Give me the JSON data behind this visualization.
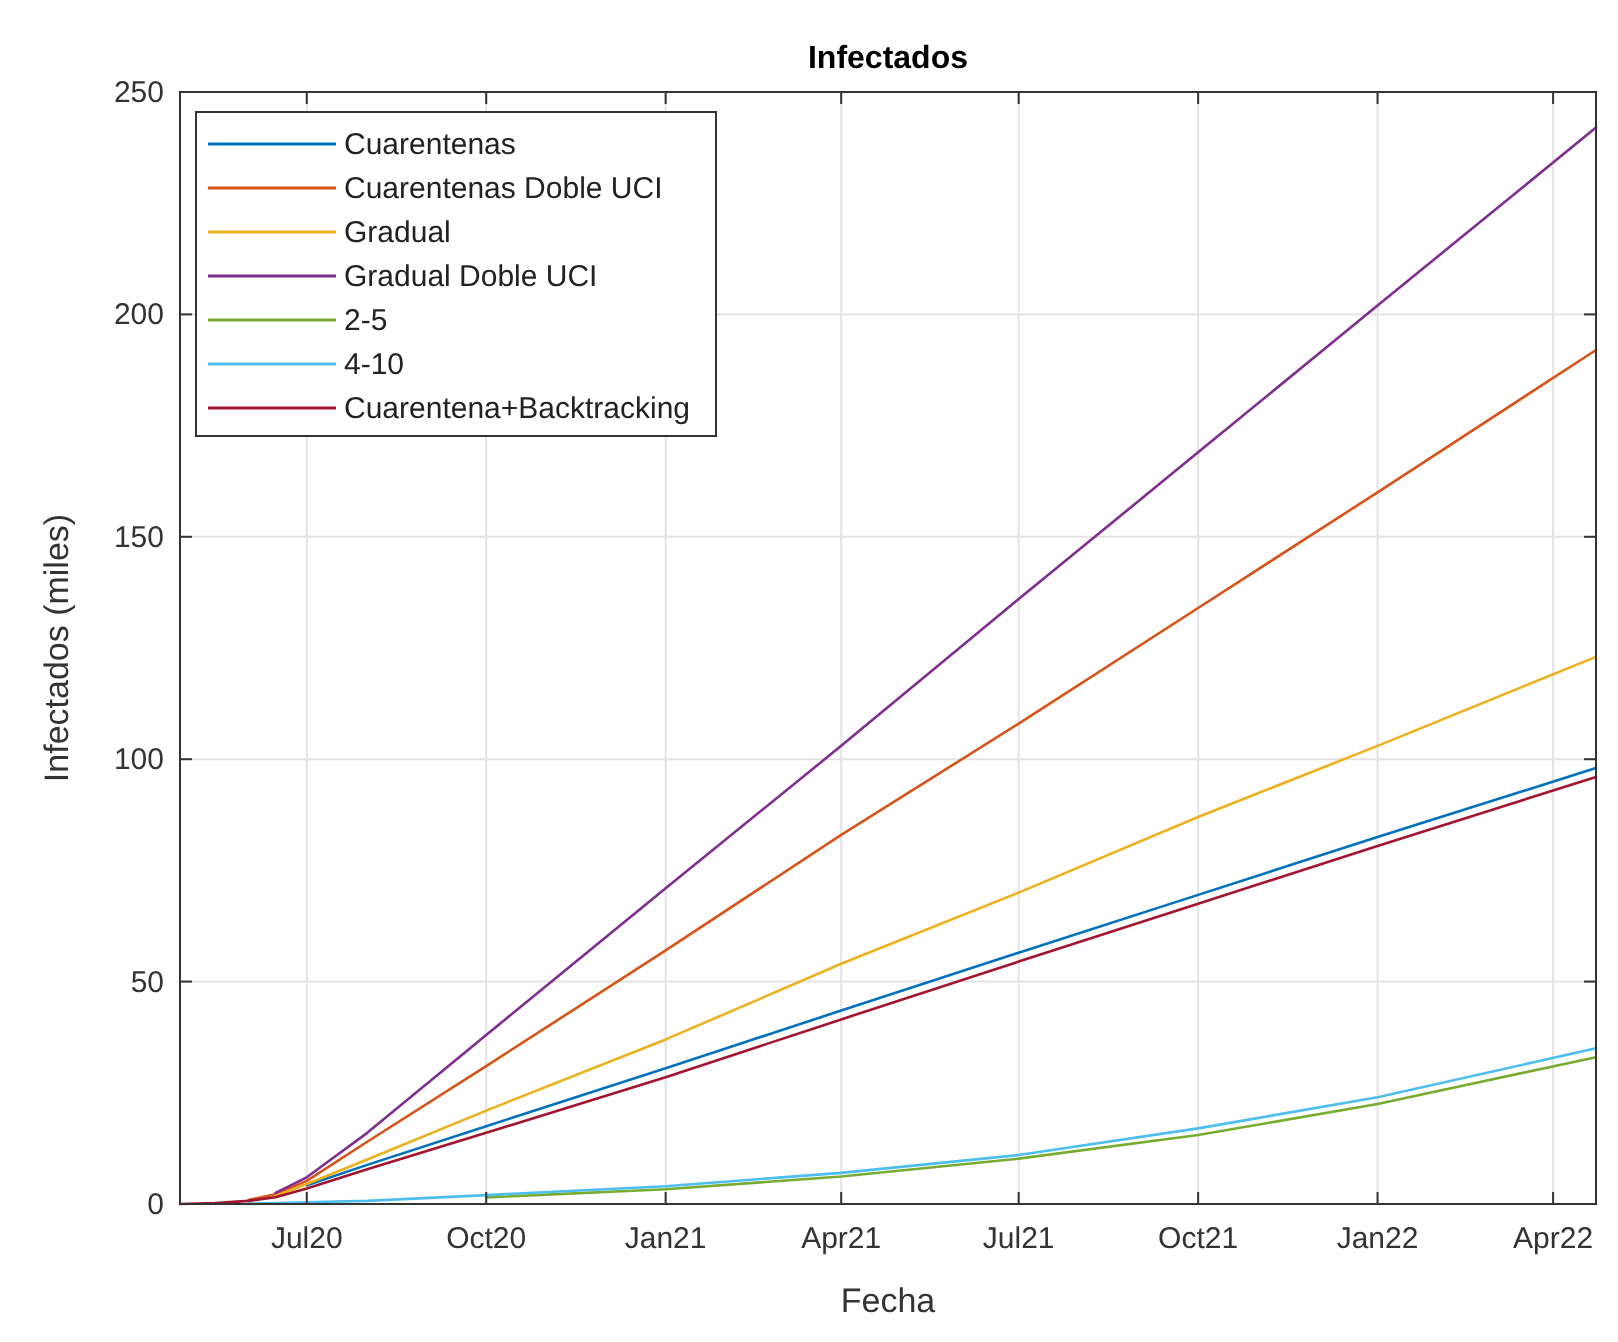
{
  "chart_data": {
    "type": "line",
    "title": "Infectados",
    "xlabel": "Fecha",
    "ylabel": "Infectados (miles)",
    "x": [
      "2020-04-27",
      "2020-05-15",
      "2020-06-01",
      "2020-06-15",
      "2020-07-01",
      "2020-08-01",
      "2020-10-01",
      "2021-01-01",
      "2021-04-01",
      "2021-07-01",
      "2021-10-01",
      "2022-01-01",
      "2022-04-23"
    ],
    "series": [
      {
        "name": "Cuarentenas",
        "color": "#0072bd",
        "values": [
          null,
          null,
          null,
          null,
          4.2,
          8.8,
          17.5,
          30.5,
          43.5,
          56.5,
          69.5,
          82.5,
          98
        ]
      },
      {
        "name": "Cuarentenas Doble UCI",
        "color": "#d95319",
        "values": [
          null,
          null,
          0.9,
          2.2,
          5.2,
          14,
          31,
          57,
          83,
          108,
          134,
          160,
          192
        ]
      },
      {
        "name": "Gradual",
        "color": "#edb120",
        "values": [
          null,
          null,
          null,
          1.8,
          4.5,
          10,
          21,
          37,
          54,
          70,
          87,
          103,
          123
        ]
      },
      {
        "name": "Gradual Doble UCI",
        "color": "#7e2f8e",
        "values": [
          null,
          null,
          null,
          2.5,
          6,
          16,
          38,
          71,
          103,
          136,
          169,
          202,
          242
        ]
      },
      {
        "name": "2-5",
        "color": "#77ac30",
        "values": [
          null,
          null,
          null,
          null,
          null,
          null,
          1.5,
          3.3,
          6.2,
          10.2,
          15.5,
          22.5,
          33
        ]
      },
      {
        "name": "4-10",
        "color": "#4dbeee",
        "values": [
          null,
          null,
          0.1,
          0.2,
          0.4,
          0.7,
          2,
          4,
          7,
          11,
          17,
          24,
          35
        ]
      },
      {
        "name": "Cuarentena+Backtracking",
        "color": "#a2142f",
        "values": [
          0,
          0.2,
          0.7,
          1.5,
          3.5,
          7.8,
          16,
          28.5,
          41.5,
          54.5,
          67.5,
          80.5,
          96
        ]
      }
    ],
    "xlim": [
      "2020-04-27",
      "2022-04-23"
    ],
    "xticks": [
      {
        "value": "2020-07-01",
        "label": "Jul20"
      },
      {
        "value": "2020-10-01",
        "label": "Oct20"
      },
      {
        "value": "2021-01-01",
        "label": "Jan21"
      },
      {
        "value": "2021-04-01",
        "label": "Apr21"
      },
      {
        "value": "2021-07-01",
        "label": "Jul21"
      },
      {
        "value": "2021-10-01",
        "label": "Oct21"
      },
      {
        "value": "2022-01-01",
        "label": "Jan22"
      },
      {
        "value": "2022-04-01",
        "label": "Apr22"
      }
    ],
    "ylim": [
      0,
      250
    ],
    "yticks": [
      0,
      50,
      100,
      150,
      200,
      250
    ],
    "grid": true,
    "legend": "top left",
    "marker": "none",
    "line_style": "solid"
  }
}
